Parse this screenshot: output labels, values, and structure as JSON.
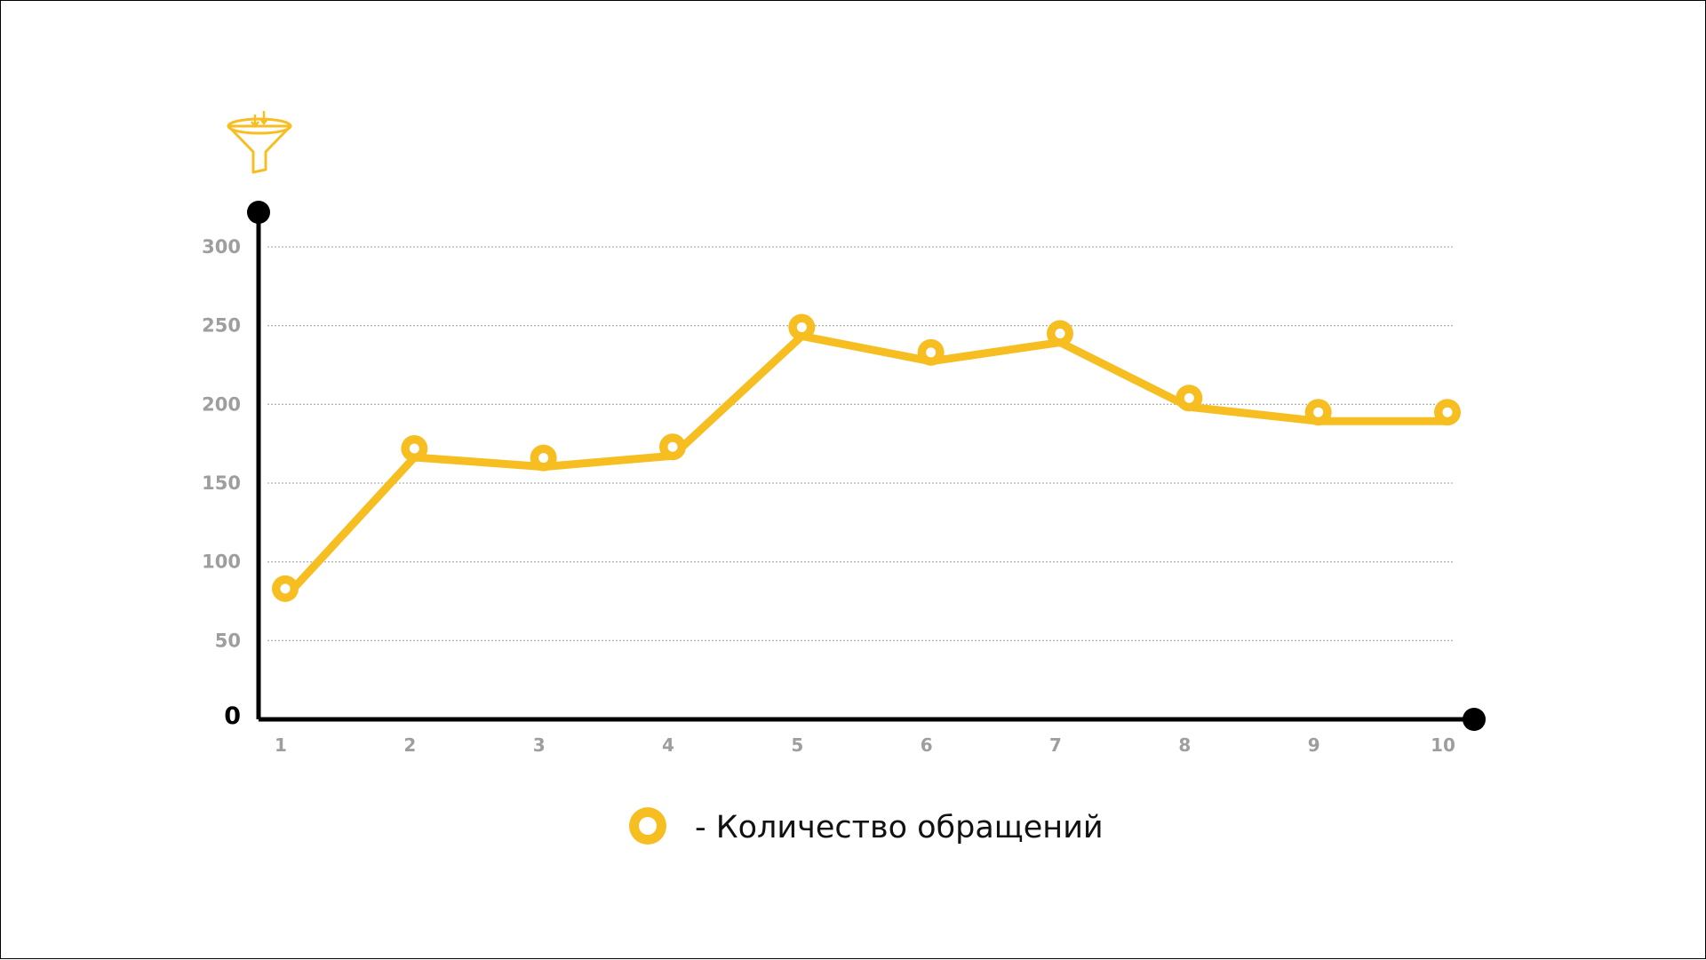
{
  "chart_data": {
    "type": "line",
    "title": "",
    "xlabel": "",
    "ylabel": "",
    "x": [
      1,
      2,
      3,
      4,
      5,
      6,
      7,
      8,
      9,
      10
    ],
    "xticks": [
      "1",
      "2",
      "3",
      "4",
      "5",
      "6",
      "7",
      "8",
      "9",
      "10"
    ],
    "yticks": [
      "0",
      "50",
      "100",
      "150",
      "200",
      "250",
      "300"
    ],
    "ylim": [
      0,
      325
    ],
    "grid": true,
    "legend_position": "bottom-center",
    "series": [
      {
        "name": "- Количество обращений",
        "values": [
          83,
          172,
          166,
          173,
          249,
          233,
          245,
          204,
          195,
          195
        ]
      }
    ]
  },
  "icon": "funnel-icon",
  "colors": {
    "series": "#f7be22",
    "axis": "#000000",
    "grid": "#b5b5b5",
    "tick_label": "#9e9e9e",
    "background": "#ffffff"
  }
}
